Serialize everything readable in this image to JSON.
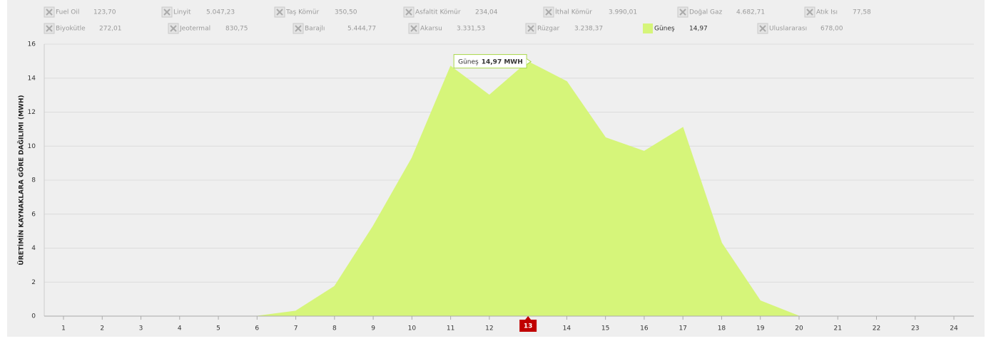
{
  "chart_data": {
    "type": "area",
    "y_label": "ÜRETİMİN KAYNAKLARA GÖRE DAĞILIMI (MWH)",
    "categories": [
      "1",
      "2",
      "3",
      "4",
      "5",
      "6",
      "7",
      "8",
      "9",
      "10",
      "11",
      "12",
      "13",
      "14",
      "15",
      "16",
      "17",
      "18",
      "19",
      "20",
      "21",
      "22",
      "23",
      "24"
    ],
    "series": [
      {
        "name": "Güneş",
        "color": "#d6f57a",
        "values": [
          0,
          0,
          0,
          0,
          0,
          0,
          0.3,
          1.75,
          5.3,
          9.3,
          14.7,
          13.0,
          14.97,
          13.8,
          10.5,
          9.7,
          11.1,
          4.3,
          0.9,
          0,
          0,
          0,
          0,
          0
        ]
      }
    ],
    "ylim": [
      0,
      16
    ],
    "yticks": [
      0,
      2,
      4,
      6,
      8,
      10,
      12,
      14,
      16
    ],
    "grid": true,
    "highlight_category": 12,
    "tooltip": {
      "value_label": "14,97 MWH"
    },
    "legend": [
      {
        "name": "Fuel Oil",
        "total": {
          "value": 123.7,
          "label": "123,70"
        },
        "enabled": false
      },
      {
        "name": "Linyit",
        "total": {
          "value": 5047.23,
          "label": "5.047,23"
        },
        "enabled": false
      },
      {
        "name": "Taş Kömür",
        "total": {
          "value": 350.5,
          "label": "350,50"
        },
        "enabled": false
      },
      {
        "name": "Asfaltit Kömür",
        "total": {
          "value": 234.04,
          "label": "234,04"
        },
        "enabled": false
      },
      {
        "name": "İthal Kömür",
        "total": {
          "value": 3990.01,
          "label": "3.990,01"
        },
        "enabled": false
      },
      {
        "name": "Doğal Gaz",
        "total": {
          "value": 4682.71,
          "label": "4.682,71"
        },
        "enabled": false
      },
      {
        "name": "Atık Isı",
        "total": {
          "value": 77.58,
          "label": "77,58"
        },
        "enabled": false
      },
      {
        "name": "Biyokütle",
        "total": {
          "value": 272.01,
          "label": "272,01"
        },
        "enabled": false
      },
      {
        "name": "Jeotermal",
        "total": {
          "value": 830.75,
          "label": "830,75"
        },
        "enabled": false
      },
      {
        "name": "Barajlı",
        "total": {
          "value": 5444.77,
          "label": "5.444,77"
        },
        "enabled": false
      },
      {
        "name": "Akarsu",
        "total": {
          "value": 3331.53,
          "label": "3.331,53"
        },
        "enabled": false
      },
      {
        "name": "Rüzgar",
        "total": {
          "value": 3238.37,
          "label": "3.238,37"
        },
        "enabled": false
      },
      {
        "name": "Güneş",
        "total": {
          "value": 14.97,
          "label": "14,97"
        },
        "enabled": true
      },
      {
        "name": "Uluslararası",
        "total": {
          "value": 678.0,
          "label": "678,00"
        },
        "enabled": false
      }
    ]
  }
}
